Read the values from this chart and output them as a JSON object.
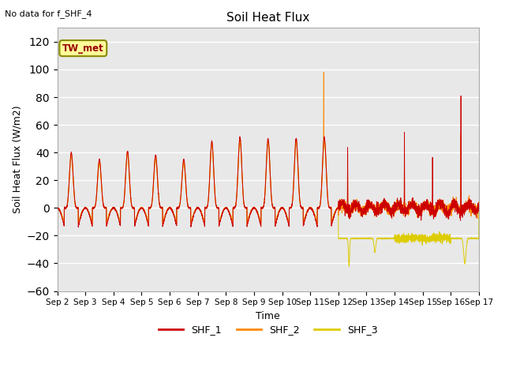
{
  "title": "Soil Heat Flux",
  "ylabel": "Soil Heat Flux (W/m2)",
  "xlabel": "Time",
  "top_left_note": "No data for f_SHF_4",
  "legend_label": "TW_met",
  "ylim": [
    -60,
    130
  ],
  "yticks": [
    -60,
    -40,
    -20,
    0,
    20,
    40,
    60,
    80,
    100,
    120
  ],
  "colors": {
    "SHF_1": "#cc0000",
    "SHF_2": "#ff8800",
    "SHF_3": "#ddcc00",
    "background": "#e8e8e8"
  },
  "line_labels": [
    "SHF_1",
    "SHF_2",
    "SHF_3"
  ],
  "x_tick_labels": [
    "Sep 2",
    "Sep 3",
    "Sep 4",
    "Sep 5",
    "Sep 6",
    "Sep 7",
    "Sep 8",
    "Sep 9",
    "Sep 10",
    "Sep 11",
    "Sep 12",
    "Sep 13",
    "Sep 14",
    "Sep 15",
    "Sep 16",
    "Sep 17"
  ],
  "n_days": 15,
  "pts_per_day": 288,
  "day_amps_1": [
    40,
    35,
    41,
    38,
    35,
    48,
    51,
    50,
    50,
    51
  ],
  "day_amps_2": [
    39,
    34,
    40,
    37,
    34,
    47,
    50,
    49,
    49,
    50
  ],
  "day_amps_3": [
    37,
    32,
    38,
    35,
    32,
    45,
    48,
    47,
    47,
    48
  ],
  "night_depth": -25
}
